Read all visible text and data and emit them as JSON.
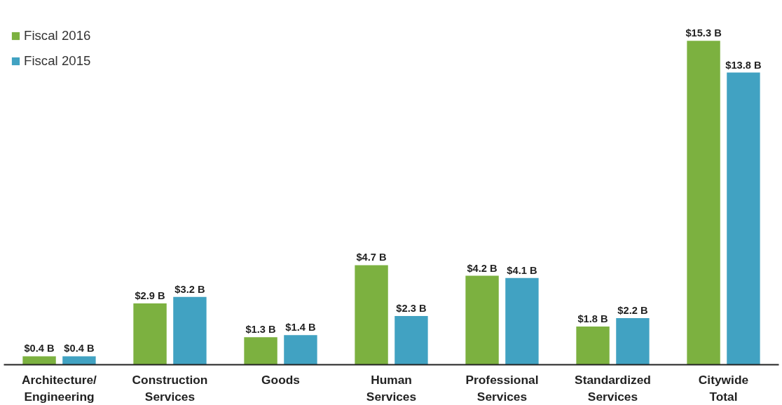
{
  "chart_data": {
    "type": "bar",
    "categories": [
      "Architecture/\nEngineering",
      "Construction\nServices",
      "Goods",
      "Human\nServices",
      "Professional\nServices",
      "Standardized\nServices",
      "Citywide\nTotal"
    ],
    "series": [
      {
        "name": "Fiscal 2016",
        "color": "#7cb140",
        "values": [
          0.4,
          2.9,
          1.3,
          4.7,
          4.2,
          1.8,
          15.3
        ],
        "value_labels": [
          "$0.4 B",
          "$2.9 B",
          "$1.3 B",
          "$4.7 B",
          "$4.2 B",
          "$1.8 B",
          "$15.3 B"
        ]
      },
      {
        "name": "Fiscal 2015",
        "color": "#41a2c2",
        "values": [
          0.4,
          3.2,
          1.4,
          2.3,
          4.1,
          2.2,
          13.8
        ],
        "value_labels": [
          "$0.4 B",
          "$3.2 B",
          "$1.4 B",
          "$2.3 B",
          "$4.1 B",
          "$2.2 B",
          "$13.8 B"
        ]
      }
    ],
    "tick_labels": "x",
    "legend": "top left",
    "grid": false
  }
}
